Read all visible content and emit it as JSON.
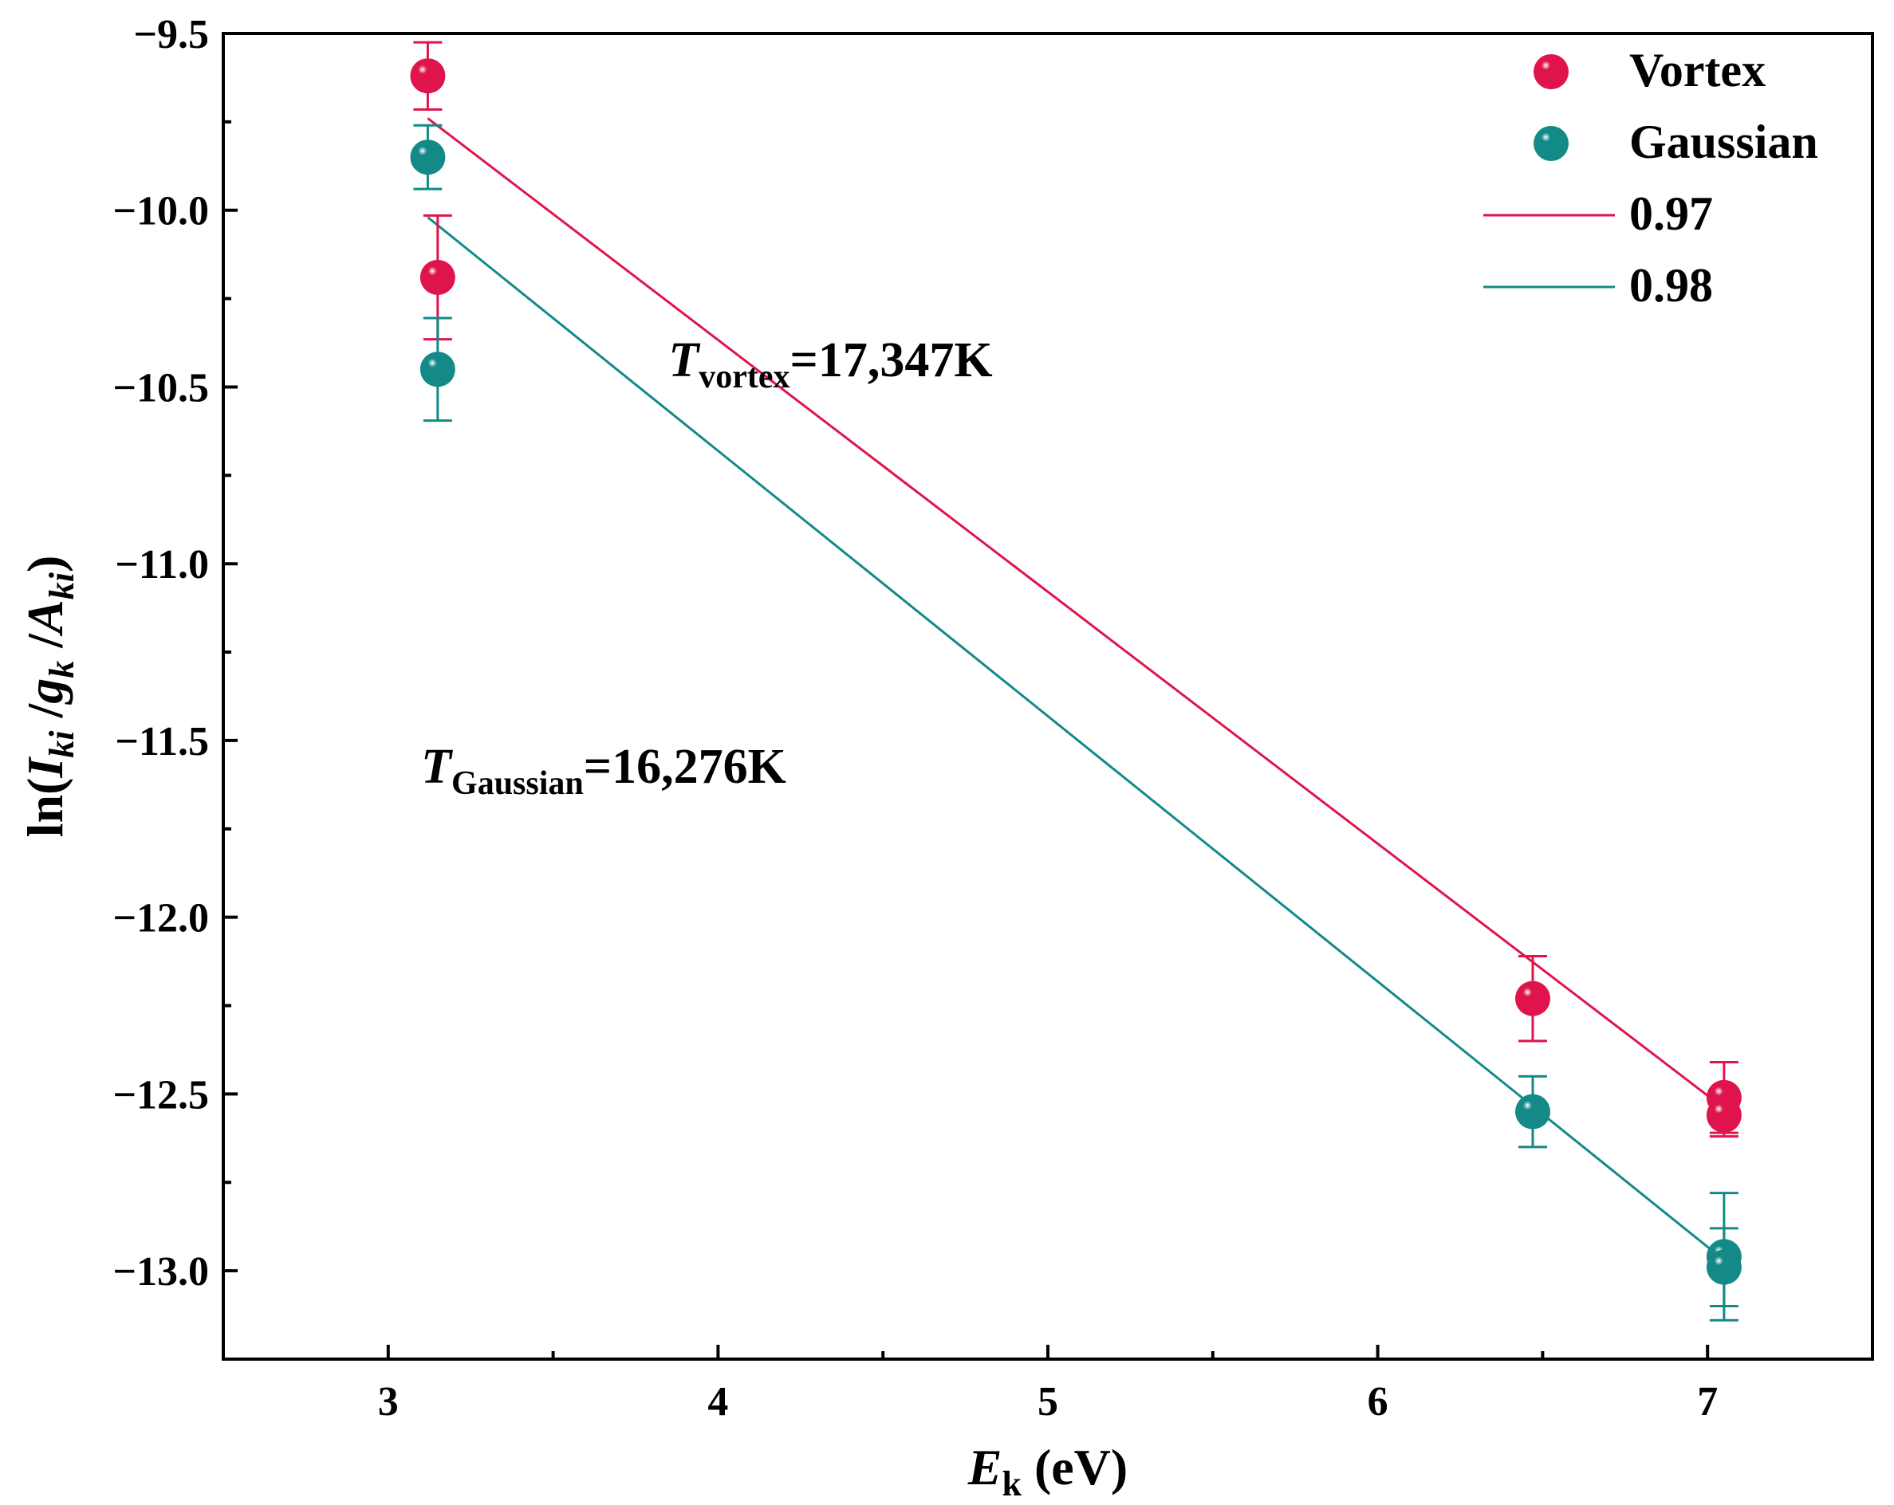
{
  "chart_data": {
    "type": "scatter",
    "xlabel": "E_k (eV)",
    "xlabel_parts": {
      "main": "E",
      "sub": "k",
      "unit": " (eV)"
    },
    "ylabel": "ln(I_ki / g_k / A_ki)",
    "ylabel_parts": {
      "prefix": "ln(",
      "i_main": "I",
      "i_sub": "ki",
      "sep1": " /",
      "g_main": "g",
      "g_sub": "k",
      "sep2": " /",
      "a_main": "A",
      "a_sub": "ki",
      "suffix": ")"
    },
    "xlim": [
      2.5,
      7.5
    ],
    "ylim": [
      -13.25,
      -9.5
    ],
    "xticks": [
      3,
      4,
      5,
      6,
      7
    ],
    "xtick_labels": [
      "3",
      "4",
      "5",
      "6",
      "7"
    ],
    "yticks": [
      -9.5,
      -10.0,
      -10.5,
      -11.0,
      -11.5,
      -12.0,
      -12.5,
      -13.0
    ],
    "ytick_labels": [
      "−9.5",
      "−10.0",
      "−10.5",
      "−11.0",
      "−11.5",
      "−12.0",
      "−12.5",
      "−13.0"
    ],
    "grid": false,
    "legend_position": "top-right",
    "series": [
      {
        "name": "Vortex",
        "kind": "points",
        "color": "#e0144c",
        "points": [
          {
            "x": 3.12,
            "y": -9.62,
            "err": 0.095
          },
          {
            "x": 3.15,
            "y": -10.19,
            "err": 0.175
          },
          {
            "x": 6.47,
            "y": -12.23,
            "err": 0.12
          },
          {
            "x": 7.05,
            "y": -12.51,
            "err": 0.1
          },
          {
            "x": 7.05,
            "y": -12.56,
            "err": 0.06
          }
        ]
      },
      {
        "name": "Gaussian",
        "kind": "points",
        "color": "#138a88",
        "points": [
          {
            "x": 3.12,
            "y": -9.85,
            "err": 0.09
          },
          {
            "x": 3.15,
            "y": -10.45,
            "err": 0.145
          },
          {
            "x": 6.47,
            "y": -12.55,
            "err": 0.1
          },
          {
            "x": 7.05,
            "y": -12.96,
            "err": 0.18
          },
          {
            "x": 7.05,
            "y": -12.99,
            "err": 0.11
          }
        ]
      },
      {
        "name": "0.97",
        "kind": "line",
        "color": "#e0144c",
        "x": [
          3.12,
          7.05
        ],
        "y": [
          -9.74,
          -12.54
        ]
      },
      {
        "name": "0.98",
        "kind": "line",
        "color": "#138a88",
        "x": [
          3.12,
          7.05
        ],
        "y": [
          -10.02,
          -12.97
        ]
      }
    ],
    "annotations": [
      {
        "id": "vortex",
        "main": "T",
        "sub": "vortex",
        "rest": "=17,347K",
        "x": 3.85,
        "y": -10.47
      },
      {
        "id": "gaussian",
        "main": "T",
        "sub": "Gaussian",
        "rest": "=16,276K",
        "x": 3.1,
        "y": -11.62
      }
    ]
  }
}
